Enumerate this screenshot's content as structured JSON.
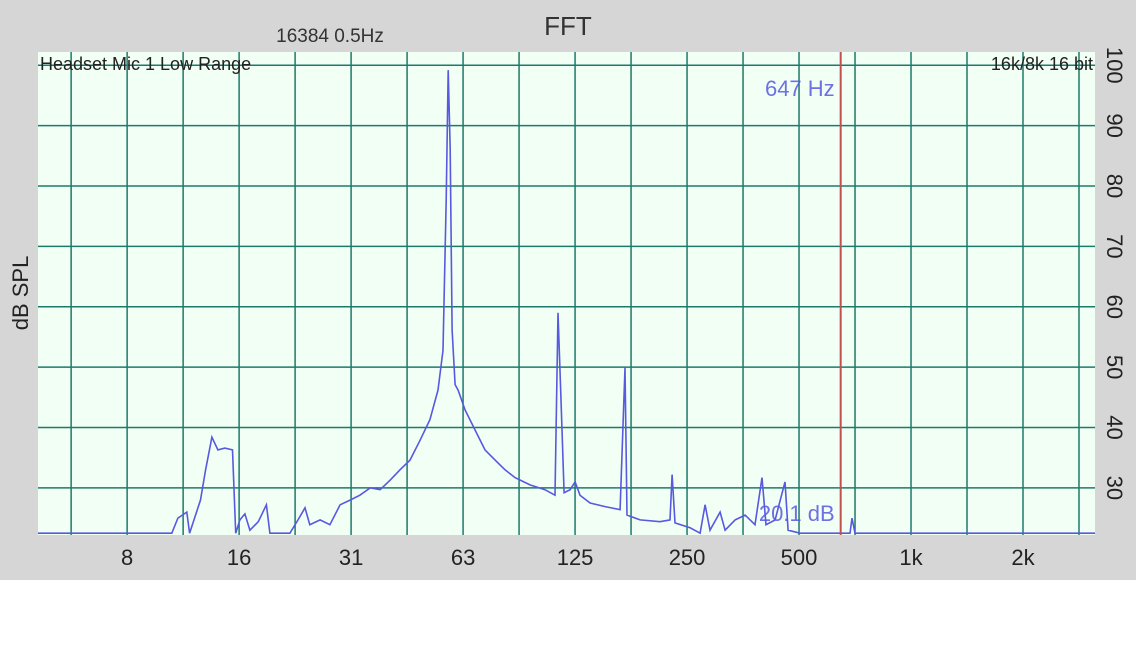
{
  "chart_data": {
    "type": "line",
    "title": "FFT",
    "subtitle": "16384  0.5Hz",
    "source_label": "Headset Mic 1 Low Range",
    "format_label": "16k/8k 16 bit",
    "y_label": "dB SPL",
    "cursor": {
      "x": 647,
      "freq_label": "647 Hz",
      "level_label": "20.1 dB",
      "color": "#c0504d"
    },
    "color": "#5858e0",
    "x_scale": "log",
    "grid": true,
    "grid_color": "#1d7a6b",
    "xlim": [
      4.5,
      3123
    ],
    "ylim": [
      22.2,
      102.2
    ],
    "xticks": [
      {
        "value": 7.8125,
        "label": "8"
      },
      {
        "value": 15.625,
        "label": "16"
      },
      {
        "value": 31.25,
        "label": "31"
      },
      {
        "value": 62.5,
        "label": "63"
      },
      125,
      250,
      500,
      {
        "value": 1000,
        "label": "1k"
      },
      {
        "value": 2000,
        "label": "2k"
      }
    ],
    "xminor": [
      5.524,
      11.049,
      22.097,
      44.194,
      88.388,
      176.777,
      353.553,
      707.107,
      1414.214,
      2828.427
    ],
    "yticks": [
      30,
      40,
      50,
      60,
      70,
      80,
      90,
      100
    ],
    "x": [
      4.5,
      10.3,
      10.7,
      11.3,
      11.5,
      12.3,
      12.7,
      13.2,
      13.7,
      14.3,
      15.0,
      15.3,
      15.7,
      16.2,
      16.7,
      17.6,
      18.5,
      18.9,
      21.4,
      22.5,
      23.5,
      24.2,
      25.8,
      27.4,
      29.2,
      31.1,
      33.0,
      35.2,
      37.4,
      39.8,
      42.3,
      45.0,
      47.9,
      50.9,
      53.5,
      55.2,
      56.3,
      57.0,
      57.7,
      58.4,
      59.5,
      60.6,
      63.3,
      67.3,
      71.6,
      76.2,
      81.0,
      86.2,
      94.6,
      103.8,
      110.4,
      112.5,
      114.6,
      116.8,
      121.2,
      125.0,
      128.9,
      137.2,
      150.5,
      165.2,
      170.3,
      172.4,
      186.9,
      211.5,
      225.0,
      227.9,
      232.1,
      254.8,
      271.0,
      279.5,
      288.2,
      306.7,
      316.3,
      336.6,
      358.0,
      380.8,
      397.7,
      407.5,
      431.1,
      458.5,
      467.2,
      503.1,
      685.5,
      694.0,
      707.1,
      3123
    ],
    "values": [
      22.5,
      22.5,
      25.0,
      26.0,
      22.5,
      28.0,
      33.0,
      38.4,
      36.3,
      36.6,
      36.3,
      22.5,
      24.7,
      25.7,
      23.0,
      24.4,
      27.2,
      22.5,
      22.5,
      24.7,
      26.7,
      23.9,
      24.7,
      23.9,
      27.2,
      28.0,
      28.8,
      30.0,
      29.7,
      31.3,
      33.0,
      34.6,
      37.9,
      41.3,
      46.2,
      52.8,
      77.7,
      99.2,
      86.0,
      56.2,
      47.1,
      46.2,
      42.9,
      39.6,
      36.3,
      34.6,
      33.0,
      31.7,
      30.5,
      29.7,
      28.8,
      59.0,
      44.6,
      29.2,
      29.7,
      31.0,
      28.8,
      27.5,
      26.9,
      26.4,
      49.9,
      25.5,
      24.7,
      24.4,
      24.7,
      32.2,
      24.2,
      23.4,
      22.5,
      27.2,
      23.0,
      26.0,
      23.0,
      24.7,
      25.5,
      23.9,
      31.7,
      23.9,
      24.7,
      31.0,
      23.0,
      22.5,
      22.5,
      25.0,
      22.5,
      22.5
    ]
  }
}
